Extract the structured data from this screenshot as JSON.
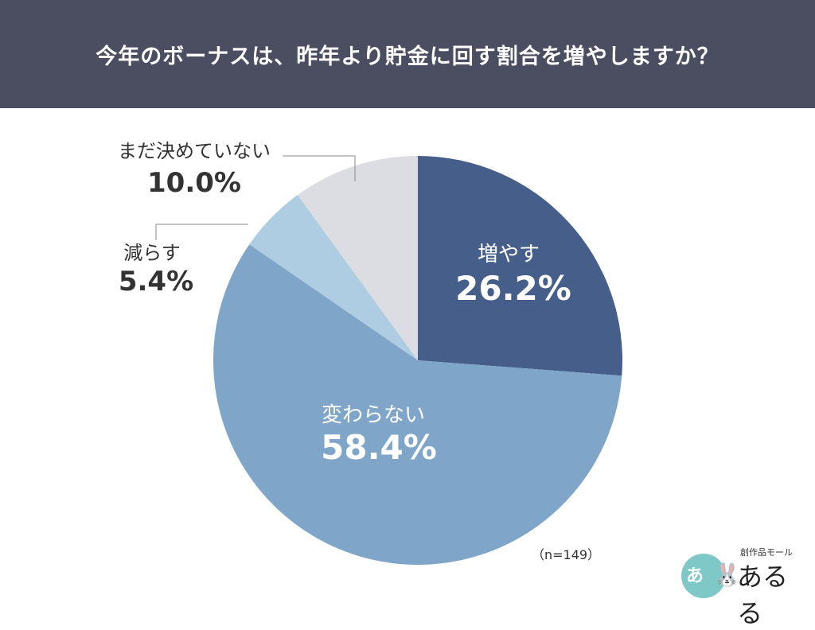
{
  "header": {
    "title": "今年のボーナスは、昨年より貯金に回す割合を増やしますか？",
    "background": "#4b4e61"
  },
  "chart_data": {
    "type": "pie",
    "start_angle_deg": 0,
    "direction": "clockwise",
    "slices": [
      {
        "label": "増やす",
        "value": 26.2,
        "value_text": "26.2%",
        "color": "#465f8a",
        "label_placement": "inside",
        "label_color": "#ffffff"
      },
      {
        "label": "変わらない",
        "value": 58.4,
        "value_text": "58.4%",
        "color": "#7fa6c9",
        "label_placement": "inside",
        "label_color": "#ffffff"
      },
      {
        "label": "減らす",
        "value": 5.4,
        "value_text": "5.4%",
        "color": "#aecde2",
        "label_placement": "outside",
        "label_color": "#333333"
      },
      {
        "label": "まだ決めていない",
        "value": 10.0,
        "value_text": "10.0%",
        "color": "#dcdde2",
        "label_placement": "outside",
        "label_color": "#333333"
      }
    ],
    "note": "（n=149）"
  },
  "logo": {
    "circle_text": "あ",
    "sub_text": "創作品モール",
    "main_text": "あるる",
    "icon": "rabbit-icon"
  }
}
